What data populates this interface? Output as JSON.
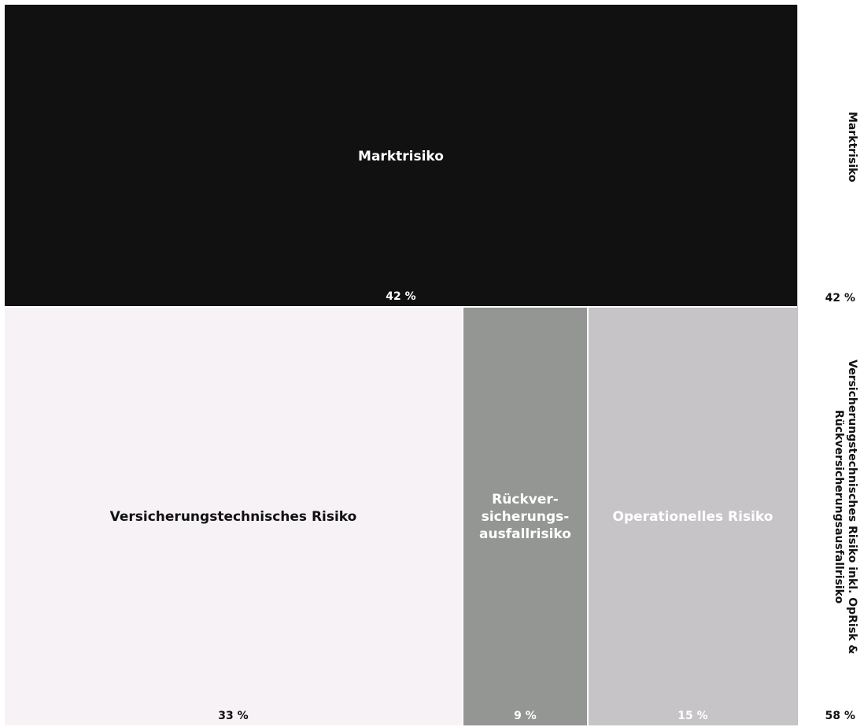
{
  "chart_data": {
    "type": "treemap",
    "groups": [
      {
        "label": "Marktrisiko",
        "value_label": "42 %",
        "value": 42,
        "tiles": [
          {
            "name": "Marktrisiko",
            "value": 42,
            "value_label": "42 %",
            "color": "#111111",
            "text_color": "#ffffff"
          }
        ]
      },
      {
        "label": "Versicherungstechnisches Risiko inkl. OpRisk & Rückversicherungsausfallrisiko",
        "value_label": "58 %",
        "value": 58,
        "tiles": [
          {
            "name": "Versicherungstechnisches Risiko",
            "value": 33,
            "value_label": "33 %",
            "color": "#f6f2f6",
            "text_color": "#111111"
          },
          {
            "name": "Rückver-sicherungs-ausfallrisiko",
            "value": 9,
            "value_label": "9 %",
            "color": "#949693",
            "text_color": "#ffffff"
          },
          {
            "name": "Operationelles Risiko",
            "value": 15,
            "value_label": "15 %",
            "color": "#c6c4c7",
            "text_color": "#ffffff"
          }
        ]
      }
    ]
  }
}
